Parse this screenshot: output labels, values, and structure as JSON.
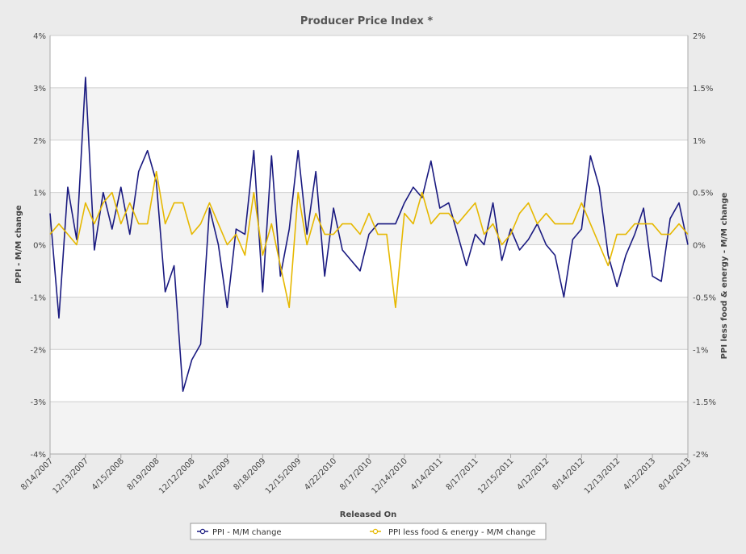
{
  "chart_data": {
    "type": "line",
    "title": "Producer Price Index *",
    "xlabel": "Released On",
    "ylabel_left": "PPI - M/M change",
    "ylabel_right": "PPI less food & energy - M/M change",
    "y_left": {
      "lim": [
        -4,
        4
      ],
      "ticks": [
        "4%",
        "3%",
        "2%",
        "1%",
        "0%",
        "-1%",
        "-2%",
        "-3%",
        "-4%"
      ]
    },
    "y_right": {
      "lim": [
        -2,
        2
      ],
      "ticks": [
        "2%",
        "1.5%",
        "1%",
        "0.5%",
        "0%",
        "-0.5%",
        "-1%",
        "-1.5%",
        "-2%"
      ]
    },
    "x_ticks": [
      "8/14/2007",
      "12/13/2007",
      "4/15/2008",
      "8/19/2008",
      "12/12/2008",
      "4/14/2009",
      "8/18/2009",
      "12/15/2009",
      "4/22/2010",
      "8/17/2010",
      "12/14/2010",
      "4/14/2011",
      "8/17/2011",
      "12/15/2011",
      "4/12/2012",
      "8/14/2012",
      "12/13/2012",
      "4/12/2013",
      "8/14/2013"
    ],
    "grid": true,
    "legend_placement": "bottom-center",
    "series": [
      {
        "name": "PPI - M/M change",
        "axis": "left",
        "color": "#1a1a80",
        "values": [
          0.6,
          -1.4,
          1.1,
          0.1,
          3.2,
          -0.1,
          1.0,
          0.3,
          1.1,
          0.2,
          1.4,
          1.8,
          1.2,
          -0.9,
          -0.4,
          -2.8,
          -2.2,
          -1.9,
          0.7,
          0.0,
          -1.2,
          0.3,
          0.2,
          1.8,
          -0.9,
          1.7,
          -0.6,
          0.3,
          1.8,
          0.2,
          1.4,
          -0.6,
          0.7,
          -0.1,
          -0.3,
          -0.5,
          0.2,
          0.4,
          0.4,
          0.4,
          0.8,
          1.1,
          0.9,
          1.6,
          0.7,
          0.8,
          0.2,
          -0.4,
          0.2,
          0.0,
          0.8,
          -0.3,
          0.3,
          -0.1,
          0.1,
          0.4,
          0.0,
          -0.2,
          -1.0,
          0.1,
          0.3,
          1.7,
          1.1,
          -0.2,
          -0.8,
          -0.2,
          0.2,
          0.7,
          -0.6,
          -0.7,
          0.5,
          0.8,
          0.0
        ]
      },
      {
        "name": "PPI less food & energy - M/M change",
        "axis": "right",
        "color": "#e6b800",
        "values": [
          0.1,
          0.2,
          0.1,
          0.0,
          0.4,
          0.2,
          0.4,
          0.5,
          0.2,
          0.4,
          0.2,
          0.2,
          0.7,
          0.2,
          0.4,
          0.4,
          0.1,
          0.2,
          0.4,
          0.2,
          0.0,
          0.1,
          -0.1,
          0.5,
          -0.1,
          0.2,
          -0.2,
          -0.6,
          0.5,
          0.0,
          0.3,
          0.1,
          0.1,
          0.2,
          0.2,
          0.1,
          0.3,
          0.1,
          0.1,
          -0.6,
          0.3,
          0.2,
          0.5,
          0.2,
          0.3,
          0.3,
          0.2,
          0.3,
          0.4,
          0.1,
          0.2,
          0.0,
          0.1,
          0.3,
          0.4,
          0.2,
          0.3,
          0.2,
          0.2,
          0.2,
          0.4,
          0.2,
          0.0,
          -0.2,
          0.1,
          0.1,
          0.2,
          0.2,
          0.2,
          0.1,
          0.1,
          0.2,
          0.1
        ]
      }
    ]
  }
}
